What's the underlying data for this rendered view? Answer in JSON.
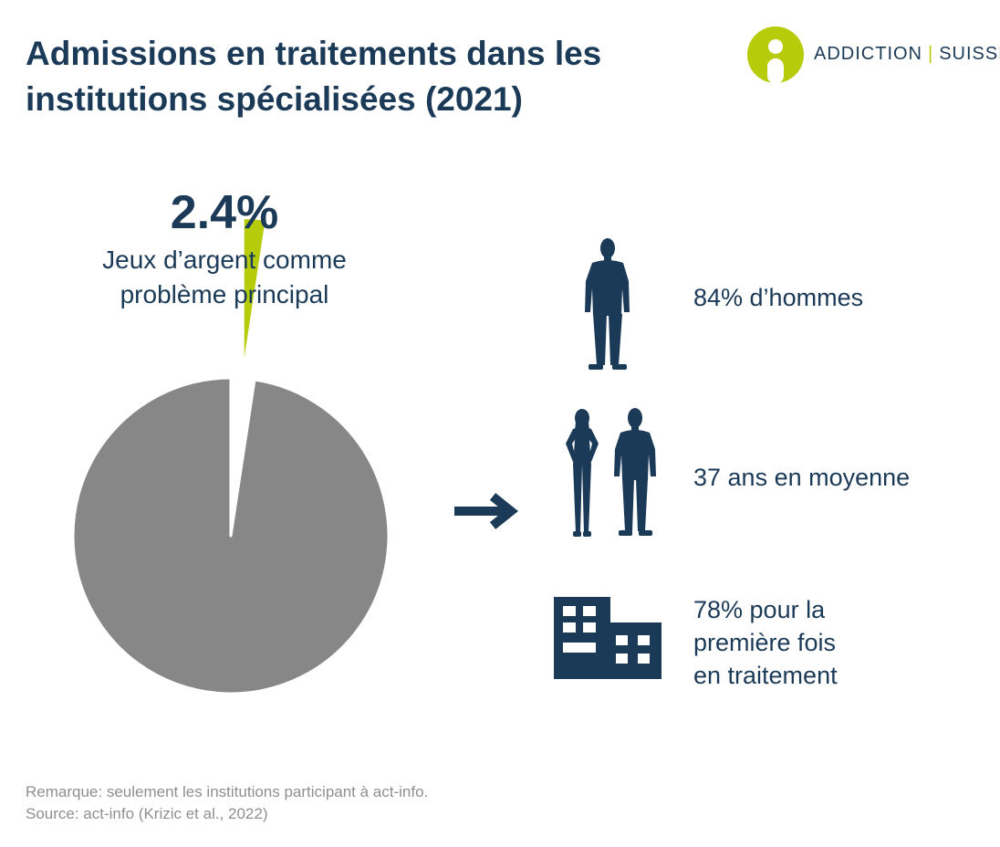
{
  "header": {
    "title_line1": "Admissions en traitements dans les",
    "title_line2": "institutions spécialisées (2021)"
  },
  "logo": {
    "text_left": "ADDICTION",
    "separator": "|",
    "text_right": "SUISSE",
    "color_accent": "#b6cc0a"
  },
  "chart_data": {
    "type": "pie",
    "slices": [
      {
        "label": "Jeux d’argent comme problème principal",
        "value": 2.4,
        "color": "#b6cc0a",
        "exploded": true
      },
      {
        "label": "",
        "value": 97.6,
        "color": "#878787",
        "exploded": false
      }
    ],
    "highlight_value": "2.4%",
    "highlight_label_line1": "Jeux d’argent comme",
    "highlight_label_line2": "problème principal"
  },
  "stats": [
    {
      "icon": "man-silhouette-icon",
      "lines": [
        "84% d’hommes"
      ]
    },
    {
      "icon": "couple-silhouette-icon",
      "lines": [
        "37 ans en moyenne"
      ]
    },
    {
      "icon": "building-icon",
      "lines": [
        "78% pour la",
        "première fois",
        "en traitement"
      ]
    }
  ],
  "notes": {
    "remark": "Remarque: seulement les institutions participant à act-info.",
    "source": "Source: act-info (Krizic et al., 2022)"
  },
  "colors": {
    "navy": "#1b3a57",
    "lime": "#b6cc0a",
    "gray": "#878787",
    "note_gray": "#8f8f8f"
  }
}
